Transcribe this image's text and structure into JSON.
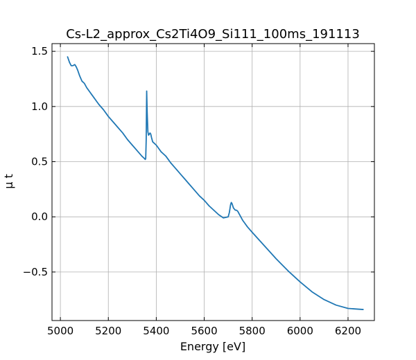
{
  "chart_data": {
    "type": "line",
    "title": "Cs-L2_approx_Cs2Ti4O9_Si111_100ms_191113",
    "xlabel": "Energy [eV]",
    "ylabel": "μ t",
    "xlim": [
      4965,
      6310
    ],
    "ylim": [
      -0.94,
      1.57
    ],
    "x_ticks": [
      5000,
      5200,
      5400,
      5600,
      5800,
      6000,
      6200
    ],
    "y_ticks": [
      -0.5,
      0.0,
      0.5,
      1.0,
      1.5
    ],
    "x_tick_labels": [
      "5000",
      "5200",
      "5400",
      "5600",
      "5800",
      "6000",
      "6200"
    ],
    "y_tick_labels": [
      "−0.5",
      "0.0",
      "0.5",
      "1.0",
      "1.5"
    ],
    "grid": true,
    "line_color": "#1f77b4",
    "series": [
      {
        "x": [
          5030,
          5038,
          5045,
          5052,
          5060,
          5066,
          5072,
          5080,
          5090,
          5100,
          5110,
          5120,
          5130,
          5140,
          5150,
          5160,
          5180,
          5200,
          5220,
          5240,
          5260,
          5280,
          5300,
          5320,
          5340,
          5350,
          5354,
          5356,
          5358,
          5360,
          5362,
          5365,
          5368,
          5371,
          5374,
          5377,
          5380,
          5385,
          5390,
          5400,
          5410,
          5420,
          5430,
          5440,
          5450,
          5460,
          5480,
          5500,
          5520,
          5540,
          5560,
          5580,
          5600,
          5620,
          5640,
          5660,
          5680,
          5700,
          5705,
          5710,
          5713,
          5716,
          5719,
          5722,
          5726,
          5730,
          5735,
          5740,
          5745,
          5750,
          5760,
          5770,
          5780,
          5800,
          5850,
          5900,
          5950,
          6000,
          6050,
          6100,
          6150,
          6200,
          6263
        ],
        "y": [
          1.45,
          1.4,
          1.37,
          1.37,
          1.38,
          1.36,
          1.33,
          1.28,
          1.23,
          1.21,
          1.17,
          1.14,
          1.11,
          1.08,
          1.05,
          1.02,
          0.97,
          0.91,
          0.86,
          0.81,
          0.76,
          0.7,
          0.65,
          0.6,
          0.55,
          0.53,
          0.52,
          0.53,
          0.7,
          1.14,
          0.95,
          0.77,
          0.74,
          0.75,
          0.76,
          0.75,
          0.72,
          0.68,
          0.67,
          0.65,
          0.62,
          0.59,
          0.57,
          0.55,
          0.52,
          0.49,
          0.44,
          0.39,
          0.34,
          0.29,
          0.24,
          0.19,
          0.15,
          0.1,
          0.06,
          0.02,
          -0.01,
          0.0,
          0.04,
          0.11,
          0.13,
          0.12,
          0.1,
          0.08,
          0.07,
          0.06,
          0.06,
          0.05,
          0.03,
          0.01,
          -0.03,
          -0.06,
          -0.09,
          -0.14,
          -0.26,
          -0.38,
          -0.49,
          -0.59,
          -0.68,
          -0.75,
          -0.8,
          -0.83,
          -0.84
        ]
      }
    ]
  }
}
